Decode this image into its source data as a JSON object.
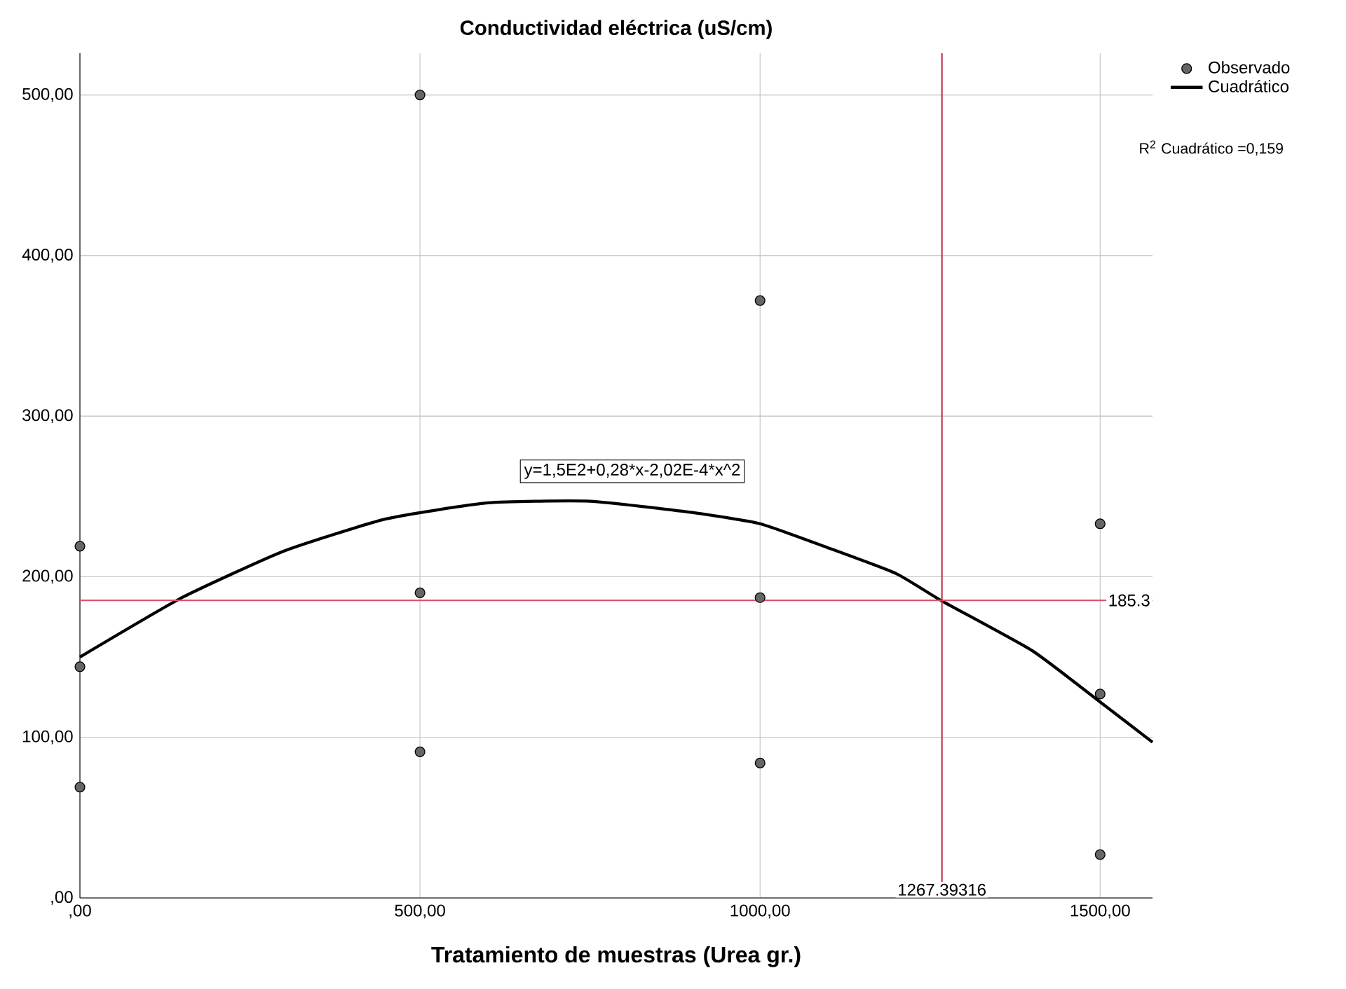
{
  "chart_data": {
    "type": "scatter",
    "title": "Conductividad eléctrica (uS/cm)",
    "xlabel": "Tratamiento de muestras (Urea gr.)",
    "xlim": [
      0,
      1577
    ],
    "ylim": [
      0,
      526
    ],
    "xticks": [
      {
        "value": 0,
        "label": ",00"
      },
      {
        "value": 500,
        "label": "500,00"
      },
      {
        "value": 1000,
        "label": "1000,00"
      },
      {
        "value": 1500,
        "label": "1500,00"
      }
    ],
    "yticks": [
      {
        "value": 0,
        "label": ",00"
      },
      {
        "value": 100,
        "label": "100,00"
      },
      {
        "value": 200,
        "label": "200,00"
      },
      {
        "value": 300,
        "label": "300,00"
      },
      {
        "value": 400,
        "label": "400,00"
      },
      {
        "value": 500,
        "label": "500,00"
      }
    ],
    "grid": true,
    "legend": "top right",
    "marker": "circle",
    "series": [
      {
        "name": "Observado",
        "color": "#666666",
        "x": [
          0,
          0,
          0,
          500,
          500,
          500,
          1000,
          1000,
          1000,
          1500,
          1500,
          1500
        ],
        "values": [
          219,
          144,
          69,
          500,
          190,
          91,
          372,
          187,
          84,
          233,
          127,
          27
        ]
      },
      {
        "name": "Cuadrático",
        "type": "line",
        "marker": "none",
        "color": "#000000",
        "x": [
          0,
          150,
          300,
          450,
          600,
          750,
          900,
          1000,
          1100,
          1200,
          1267,
          1400,
          1500,
          1577
        ],
        "values": [
          150,
          187,
          216,
          236,
          246,
          247,
          240,
          233,
          218,
          202,
          185,
          154,
          122,
          97
        ]
      }
    ],
    "ref_lines": [
      {
        "axis": "y",
        "value": 185.3,
        "label": "185.3",
        "color": "#d9546b"
      },
      {
        "axis": "x",
        "value": 1267.39316,
        "label": "1267.39316",
        "color": "#c0304f"
      }
    ],
    "annotations": [
      "y=1,5E2+0,28*x-2,02E-4*x^2",
      "R$^{2}$ Cuadrático =0,159"
    ]
  }
}
